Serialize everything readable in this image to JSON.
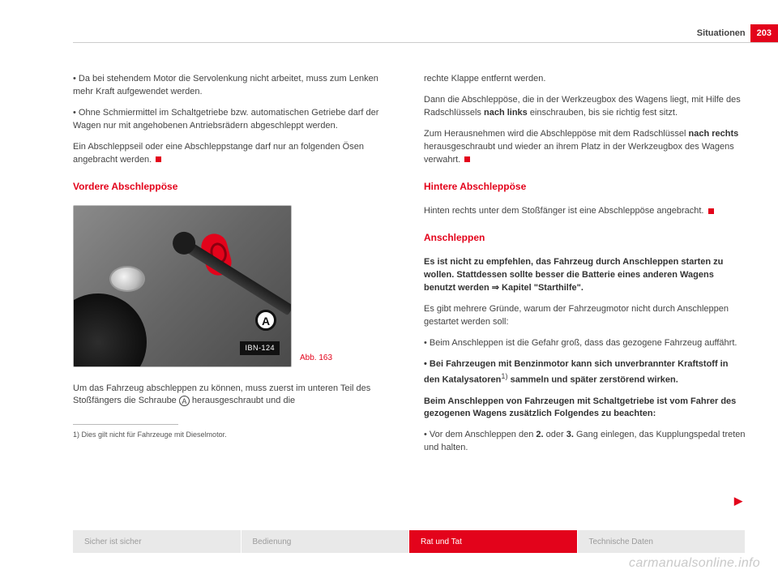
{
  "header": {
    "section": "Situationen",
    "page_number": "203"
  },
  "left": {
    "p1": "• Da bei stehendem Motor die Servolenkung nicht arbeitet, muss zum Lenken mehr Kraft aufgewendet werden.",
    "p2": "• Ohne Schmiermittel im Schaltgetriebe bzw. automatischen Getriebe darf der Wagen nur mit angehobenen Antriebsrädern abgeschleppt werden.",
    "p3": "Ein Abschleppseil oder eine Abschleppstange darf nur an folgenden Ösen angebracht werden.",
    "h_front": "Vordere Abschleppöse",
    "fig_label_A": "A",
    "fig_ibn": "IBN-124",
    "fig_caption": "Abb. 163",
    "p4a": "Um das Fahrzeug abschleppen zu können, muss zuerst im unteren Teil des Stoßfängers die Schraube ",
    "p4b": " herausgeschraubt und die",
    "footnote": "1) Dies gilt nicht für Fahrzeuge mit Dieselmotor."
  },
  "right": {
    "p1": "rechte Klappe entfernt werden.",
    "p2a": "Dann die Abschleppöse, die in der Werkzeugbox des Wagens liegt, mit Hilfe des Radschlüssels ",
    "p2b_bold": "nach links",
    "p2c": " einschrauben, bis sie richtig fest sitzt.",
    "p3a": "Zum Herausnehmen wird die Abschleppöse mit dem Radschlüssel ",
    "p3b_bold": "nach rechts",
    "p3c": " herausgeschraubt und wieder an ihrem Platz in der Werkzeugbox des Wagens verwahrt.",
    "h_rear": "Hintere Abschleppöse",
    "p4": "Hinten rechts unter dem Stoßfänger ist eine Abschleppöse angebracht.",
    "h_tow": "Anschleppen",
    "p5_bold_a": "Es ist nicht zu empfehlen, das Fahrzeug durch Anschleppen starten zu wollen. Stattdessen sollte besser die Batterie eines anderen Wagens benutzt werden ",
    "p5_bold_b": " Kapitel \"Starthilfe\".",
    "p6": "Es gibt mehrere Gründe, warum der Fahrzeugmotor nicht durch Anschleppen gestartet werden soll:",
    "p7": "• Beim Anschleppen ist die Gefahr groß, dass das gezogene Fahrzeug auffährt.",
    "p8_bold_a": "• Bei Fahrzeugen mit Benzinmotor kann sich unverbrannter Kraftstoff in den Katalysatoren",
    "p8_sup": "1)",
    "p8_bold_b": " sammeln und später zerstörend wirken.",
    "p9_bold": "Beim Anschleppen von Fahrzeugen mit Schaltgetriebe ist vom Fahrer des gezogenen Wagens zusätzlich Folgendes zu beachten:",
    "p10a": "• Vor dem Anschleppen den ",
    "p10b_bold": "2.",
    "p10c": " oder ",
    "p10d_bold": "3.",
    "p10e": " Gang einlegen, das Kupplungspedal treten und halten."
  },
  "tabs": {
    "t1": "Sicher ist sicher",
    "t2": "Bedienung",
    "t3": "Rat und Tat",
    "t4": "Technische Daten"
  },
  "watermark": "carmanualsonline.info",
  "colors": {
    "accent": "#e3031b",
    "text": "#444444",
    "tab_inactive_bg": "#e9e9e9",
    "tab_inactive_fg": "#9b9b9b"
  }
}
